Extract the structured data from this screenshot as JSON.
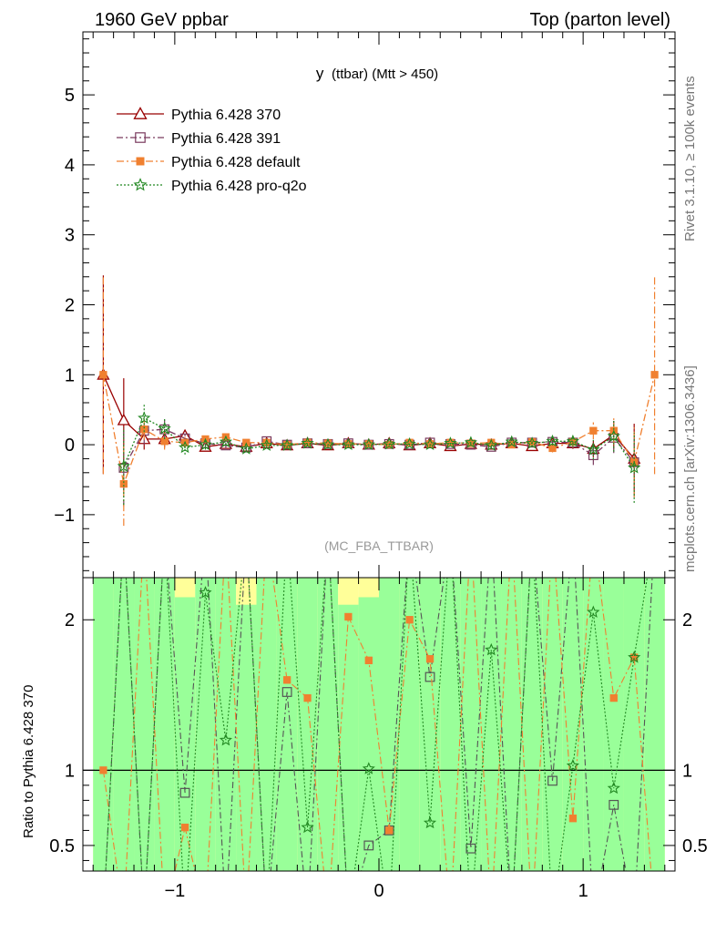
{
  "header": {
    "left": "1960 GeV ppbar",
    "right": "Top (parton level)"
  },
  "side_labels": {
    "rivet": "Rivet 3.1.10, ≥ 100k events",
    "mcplots": "mcplots.cern.ch [arXiv:1306.3436]"
  },
  "chart_data": [
    {
      "type": "line",
      "title": "y (ttbar) (Mtt > 450)",
      "title_main": "y",
      "title_sub": "(ttbar) (Mtt > 450)",
      "annotation": "(MC_FBA_TTBAR)",
      "xlim": [
        -1.45,
        1.45
      ],
      "ylim": [
        -1.9,
        5.9
      ],
      "yticks": [
        -1,
        0,
        1,
        2,
        3,
        4,
        5
      ],
      "legend_position": "top-left",
      "x": [
        -1.35,
        -1.25,
        -1.15,
        -1.05,
        -0.95,
        -0.85,
        -0.75,
        -0.65,
        -0.55,
        -0.45,
        -0.35,
        -0.25,
        -0.15,
        -0.05,
        0.05,
        0.15,
        0.25,
        0.35,
        0.45,
        0.55,
        0.65,
        0.75,
        0.85,
        0.95,
        1.05,
        1.15,
        1.25,
        1.35
      ],
      "series": [
        {
          "name": "Pythia 6.428 370",
          "color": "#990000",
          "marker": "triangle",
          "dash": "",
          "values": [
            1.0,
            0.35,
            0.08,
            0.08,
            0.13,
            -0.03,
            0.01,
            -0.03,
            0.02,
            -0.01,
            0.02,
            -0.01,
            0.02,
            0.0,
            0.02,
            -0.01,
            0.02,
            -0.02,
            0.01,
            0.0,
            0.02,
            -0.02,
            0.02,
            0.02,
            -0.06,
            0.14,
            -0.2,
            null
          ],
          "errors": [
            1.42,
            0.6,
            0.15,
            0.12,
            0.08,
            0.06,
            0.05,
            0.04,
            0.03,
            0.03,
            0.03,
            0.02,
            0.02,
            0.02,
            0.02,
            0.02,
            0.02,
            0.02,
            0.03,
            0.03,
            0.04,
            0.05,
            0.06,
            0.08,
            0.12,
            0.2,
            0.5,
            0
          ]
        },
        {
          "name": "Pythia 6.428 391",
          "color": "#7a3a5e",
          "marker": "square",
          "dash": "7,3,2,3",
          "values": [
            null,
            -0.33,
            0.2,
            0.22,
            0.09,
            0.02,
            -0.01,
            -0.04,
            0.05,
            0.0,
            0.02,
            0.01,
            0.02,
            0.0,
            0.01,
            0.0,
            0.03,
            0.01,
            0.0,
            -0.03,
            0.03,
            0.03,
            0.04,
            0.03,
            -0.15,
            0.1,
            -0.25,
            null
          ],
          "errors": [
            0,
            0.55,
            0.2,
            0.15,
            0.1,
            0.07,
            0.05,
            0.04,
            0.04,
            0.03,
            0.03,
            0.02,
            0.02,
            0.02,
            0.02,
            0.02,
            0.02,
            0.02,
            0.03,
            0.03,
            0.04,
            0.05,
            0.06,
            0.08,
            0.14,
            0.22,
            0.5,
            0
          ]
        },
        {
          "name": "Pythia 6.428 default",
          "color": "#f08030",
          "marker": "square-filled",
          "dash": "8,3,2,3",
          "values": [
            1.0,
            -0.56,
            0.22,
            0.05,
            0.03,
            0.08,
            0.11,
            0.03,
            0.03,
            0.0,
            0.03,
            0.02,
            0.01,
            0.01,
            0.0,
            0.03,
            0.01,
            0.03,
            0.02,
            0.03,
            0.0,
            0.04,
            -0.05,
            0.04,
            0.2,
            0.2,
            -0.25,
            1.0
          ],
          "errors": [
            1.42,
            0.6,
            0.15,
            0.12,
            0.08,
            0.06,
            0.05,
            0.04,
            0.03,
            0.03,
            0.03,
            0.02,
            0.02,
            0.02,
            0.02,
            0.02,
            0.02,
            0.02,
            0.03,
            0.03,
            0.04,
            0.05,
            0.06,
            0.08,
            0.12,
            0.2,
            0.5,
            1.42
          ]
        },
        {
          "name": "Pythia 6.428 pro-q2o",
          "color": "#228822",
          "marker": "star",
          "dash": "2,2",
          "values": [
            null,
            -0.31,
            0.38,
            0.23,
            -0.04,
            0.0,
            0.04,
            -0.06,
            -0.01,
            -0.01,
            0.02,
            0.0,
            0.0,
            0.0,
            0.01,
            0.01,
            0.0,
            0.02,
            0.03,
            -0.01,
            0.04,
            0.02,
            0.05,
            0.05,
            -0.07,
            0.12,
            -0.33,
            null
          ],
          "errors": [
            0,
            0.55,
            0.2,
            0.15,
            0.1,
            0.07,
            0.05,
            0.04,
            0.04,
            0.03,
            0.03,
            0.02,
            0.02,
            0.02,
            0.02,
            0.02,
            0.02,
            0.02,
            0.03,
            0.03,
            0.04,
            0.05,
            0.06,
            0.08,
            0.14,
            0.22,
            0.5,
            0
          ]
        }
      ]
    },
    {
      "type": "line",
      "ylabel": "Ratio to Pythia 6.428 370",
      "xlim": [
        -1.45,
        1.45
      ],
      "ylim": [
        0.33,
        2.28
      ],
      "yticks": [
        0.5,
        1,
        2
      ],
      "xticks": [
        -1,
        0,
        1
      ],
      "reference_line": 1,
      "band_colors": {
        "inner": "#99ff99",
        "outer": "#ffff99"
      },
      "x": [
        -1.35,
        -1.25,
        -1.15,
        -1.05,
        -0.95,
        -0.85,
        -0.75,
        -0.65,
        -0.55,
        -0.45,
        -0.35,
        -0.25,
        -0.15,
        -0.05,
        0.05,
        0.15,
        0.25,
        0.35,
        0.45,
        0.55,
        0.65,
        0.75,
        0.85,
        0.95,
        1.05,
        1.15,
        1.25,
        1.35
      ],
      "band_inner_top": [
        2.28,
        2.28,
        2.28,
        2.28,
        2.15,
        2.28,
        2.28,
        2.1,
        2.28,
        2.28,
        2.28,
        2.28,
        2.1,
        2.15,
        2.28,
        2.28,
        2.28,
        2.28,
        2.28,
        2.28,
        2.28,
        2.28,
        2.28,
        2.28,
        2.28,
        2.28,
        2.28,
        2.28
      ],
      "band_outer_top": [
        2.28,
        2.28,
        2.28,
        2.28,
        2.28,
        2.28,
        2.28,
        2.28,
        2.28,
        2.28,
        2.28,
        2.28,
        2.28,
        2.28,
        2.28,
        2.28,
        2.28,
        2.28,
        2.28,
        2.28,
        2.28,
        2.28,
        2.28,
        2.28,
        2.28,
        2.28,
        2.28,
        2.28
      ],
      "series": [
        {
          "name": "Pythia 6.428 391",
          "color": "#555555",
          "marker": "square",
          "dash": "7,3,2,3",
          "values": [
            null,
            null,
            null,
            null,
            0.85,
            null,
            null,
            null,
            null,
            1.52,
            null,
            null,
            null,
            0.5,
            0.6,
            null,
            1.62,
            null,
            0.48,
            null,
            null,
            null,
            0.93,
            null,
            null,
            0.77,
            null,
            null
          ]
        },
        {
          "name": "Pythia 6.428 default",
          "color": "#f08030",
          "marker": "square-filled",
          "dash": "8,3,2,3",
          "values": [
            1.0,
            null,
            null,
            null,
            0.62,
            null,
            null,
            null,
            null,
            1.6,
            1.48,
            null,
            2.02,
            1.73,
            0.6,
            2.0,
            1.74,
            null,
            null,
            null,
            null,
            null,
            null,
            0.68,
            null,
            1.48,
            1.75,
            null
          ]
        },
        {
          "name": "Pythia 6.428 pro-q2o",
          "color": "#228822",
          "marker": "star",
          "dash": "2,2",
          "values": [
            null,
            null,
            null,
            null,
            null,
            2.18,
            1.2,
            null,
            null,
            null,
            0.62,
            null,
            null,
            1.01,
            null,
            null,
            0.65,
            null,
            null,
            1.8,
            null,
            null,
            null,
            1.03,
            2.05,
            0.88,
            1.75,
            null
          ]
        }
      ]
    }
  ]
}
